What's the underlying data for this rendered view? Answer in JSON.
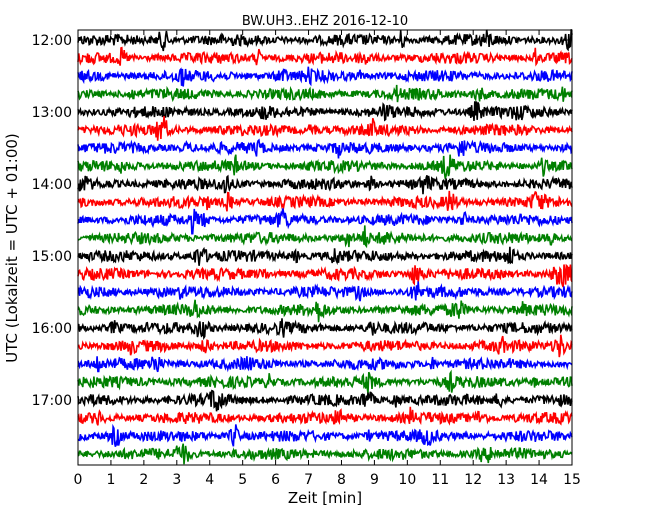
{
  "chart_data": {
    "type": "line",
    "title": "BW.UH3..EHZ 2016-12-10",
    "xlabel": "Zeit  [min]",
    "ylabel": "UTC (Lokalzeit = UTC + 01:00)",
    "xlim": [
      0,
      15
    ],
    "x_ticks": [
      "0",
      "1",
      "2",
      "3",
      "4",
      "5",
      "6",
      "7",
      "8",
      "9",
      "10",
      "11",
      "12",
      "13",
      "14",
      "15"
    ],
    "y_tick_labels": [
      "12:00",
      "13:00",
      "14:00",
      "15:00",
      "16:00",
      "17:00"
    ],
    "grid": false,
    "trace_colors": [
      "#000000",
      "#ff0000",
      "#0000ff",
      "#008000"
    ],
    "traces": [
      {
        "start": "12:00"
      },
      {
        "start": "12:15"
      },
      {
        "start": "12:30"
      },
      {
        "start": "12:45"
      },
      {
        "start": "13:00"
      },
      {
        "start": "13:15"
      },
      {
        "start": "13:30"
      },
      {
        "start": "13:45"
      },
      {
        "start": "14:00"
      },
      {
        "start": "14:15"
      },
      {
        "start": "14:30"
      },
      {
        "start": "14:45"
      },
      {
        "start": "15:00"
      },
      {
        "start": "15:15"
      },
      {
        "start": "15:30"
      },
      {
        "start": "15:45"
      },
      {
        "start": "16:00"
      },
      {
        "start": "16:15"
      },
      {
        "start": "16:30"
      },
      {
        "start": "16:45"
      },
      {
        "start": "17:00"
      },
      {
        "start": "17:15"
      },
      {
        "start": "17:30"
      },
      {
        "start": "17:45"
      }
    ]
  }
}
